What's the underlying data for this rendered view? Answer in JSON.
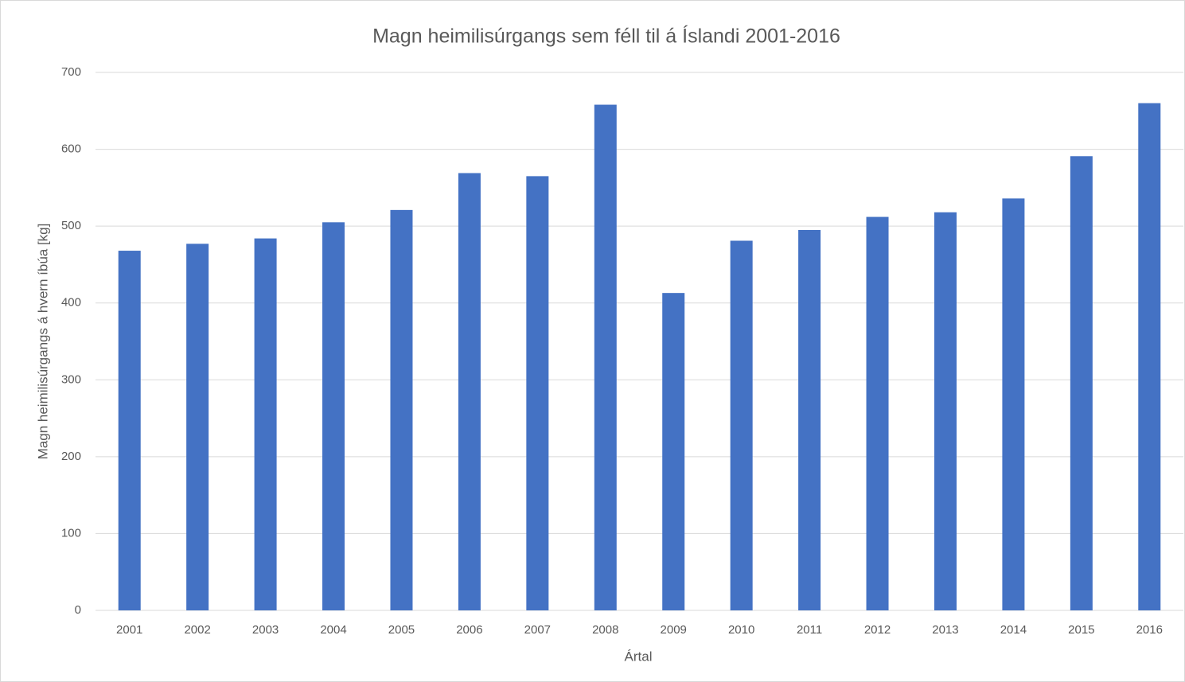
{
  "chart_data": {
    "type": "bar",
    "title": "Magn heimilisúrgangs sem féll til á Íslandi 2001-2016",
    "x_label": "Ártal",
    "y_label": "Magn heimilisúrgangs á hvern íbúa [kg]",
    "categories": [
      "2001",
      "2002",
      "2003",
      "2004",
      "2005",
      "2006",
      "2007",
      "2008",
      "2009",
      "2010",
      "2011",
      "2012",
      "2013",
      "2014",
      "2015",
      "2016"
    ],
    "values": [
      468,
      477,
      484,
      505,
      521,
      569,
      565,
      658,
      413,
      481,
      495,
      512,
      518,
      536,
      591,
      660
    ],
    "color": "#4472c4",
    "ylim": [
      0,
      700
    ],
    "yticks": [
      0,
      100,
      200,
      300,
      400,
      500,
      600,
      700
    ],
    "grid": true
  }
}
